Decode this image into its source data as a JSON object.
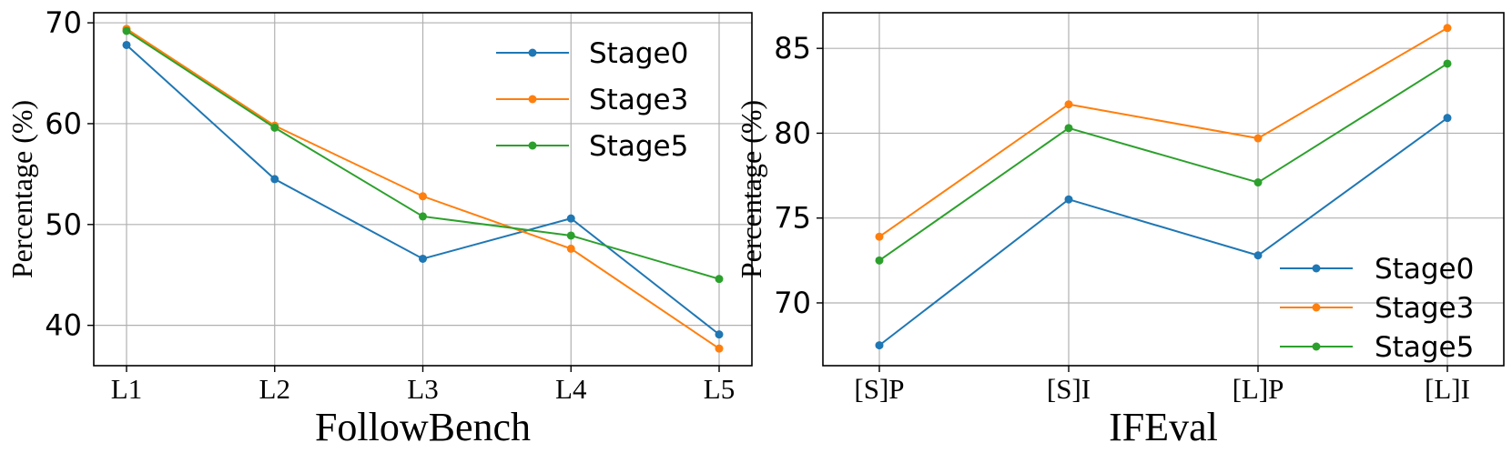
{
  "chart_data": [
    {
      "type": "line",
      "title": "",
      "xlabel": "FollowBench",
      "ylabel": "Percentage (%)",
      "categories": [
        "L1",
        "L2",
        "L3",
        "L4",
        "L5"
      ],
      "ylim": [
        36,
        71
      ],
      "yticks": [
        40,
        50,
        60,
        70
      ],
      "grid": true,
      "legend_position": "top-right",
      "series": [
        {
          "name": "Stage0",
          "color": "#1f77b4",
          "values": [
            67.8,
            54.5,
            46.6,
            50.6,
            39.1
          ]
        },
        {
          "name": "Stage3",
          "color": "#ff7f0e",
          "values": [
            69.4,
            59.8,
            52.8,
            47.6,
            37.7
          ]
        },
        {
          "name": "Stage5",
          "color": "#2ca02c",
          "values": [
            69.2,
            59.6,
            50.8,
            48.9,
            44.6
          ]
        }
      ]
    },
    {
      "type": "line",
      "title": "",
      "xlabel": "IFEval",
      "ylabel": "Percentage (%)",
      "categories": [
        "[S]P",
        "[S]I",
        "[L]P",
        "[L]I"
      ],
      "ylim": [
        66.3,
        87.1
      ],
      "yticks": [
        70,
        75,
        80,
        85
      ],
      "grid": true,
      "legend_position": "bottom-right",
      "series": [
        {
          "name": "Stage0",
          "color": "#1f77b4",
          "values": [
            67.5,
            76.1,
            72.8,
            80.9
          ]
        },
        {
          "name": "Stage3",
          "color": "#ff7f0e",
          "values": [
            73.9,
            81.7,
            79.7,
            86.2
          ]
        },
        {
          "name": "Stage5",
          "color": "#2ca02c",
          "values": [
            72.5,
            80.3,
            77.1,
            84.1
          ]
        }
      ]
    }
  ]
}
